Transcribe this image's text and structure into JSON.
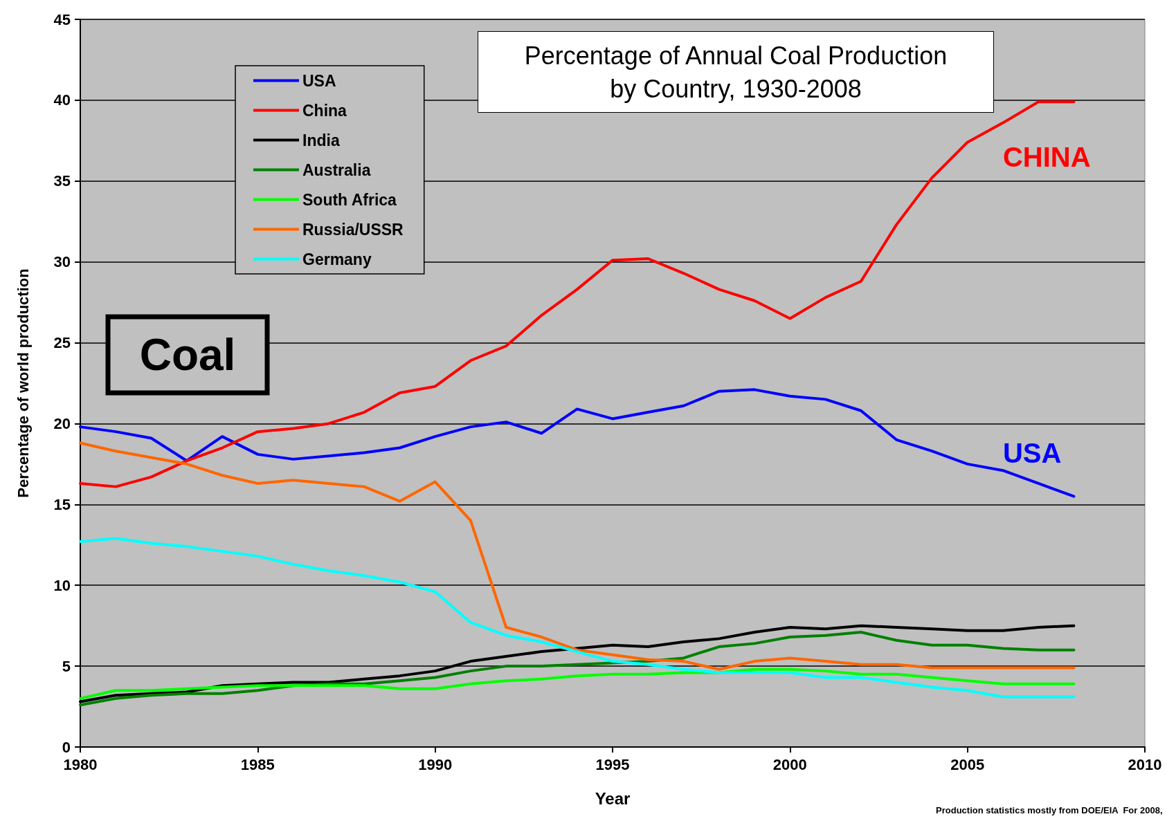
{
  "chart_data": {
    "type": "line",
    "title": "Percentage of Annual Coal Production\nby Country, 1930-2008",
    "xlabel": "Year",
    "ylabel": "Percentage of world production",
    "x": [
      1980,
      1981,
      1982,
      1983,
      1984,
      1985,
      1986,
      1987,
      1988,
      1989,
      1990,
      1991,
      1992,
      1993,
      1994,
      1995,
      1996,
      1997,
      1998,
      1999,
      2000,
      2001,
      2002,
      2003,
      2004,
      2005,
      2006,
      2007,
      2008
    ],
    "series": [
      {
        "name": "USA",
        "color": "#0000ff",
        "values": [
          19.8,
          19.5,
          19.1,
          17.7,
          19.2,
          18.1,
          17.8,
          18.0,
          18.2,
          18.5,
          19.2,
          19.8,
          20.1,
          19.4,
          20.9,
          20.3,
          20.7,
          21.1,
          22.0,
          22.1,
          21.7,
          21.5,
          20.8,
          19.0,
          18.3,
          17.5,
          17.1,
          16.3,
          15.5
        ]
      },
      {
        "name": "China",
        "color": "#ff0000",
        "values": [
          16.3,
          16.1,
          16.7,
          17.7,
          18.5,
          19.5,
          19.7,
          20.0,
          20.7,
          21.9,
          22.3,
          23.9,
          24.8,
          26.7,
          28.3,
          30.1,
          30.2,
          29.3,
          28.3,
          27.6,
          26.5,
          27.8,
          28.8,
          32.3,
          35.2,
          37.4,
          38.6,
          39.9,
          39.9
        ]
      },
      {
        "name": "India",
        "color": "#000000",
        "values": [
          2.8,
          3.2,
          3.3,
          3.4,
          3.8,
          3.9,
          4.0,
          4.0,
          4.2,
          4.4,
          4.7,
          5.3,
          5.6,
          5.9,
          6.1,
          6.3,
          6.2,
          6.5,
          6.7,
          7.1,
          7.4,
          7.3,
          7.5,
          7.4,
          7.3,
          7.2,
          7.2,
          7.4,
          7.5
        ]
      },
      {
        "name": "Australia",
        "color": "#008000",
        "values": [
          2.6,
          3.0,
          3.2,
          3.3,
          3.3,
          3.5,
          3.8,
          3.9,
          3.9,
          4.1,
          4.3,
          4.7,
          5.0,
          5.0,
          5.1,
          5.2,
          5.3,
          5.5,
          6.2,
          6.4,
          6.8,
          6.9,
          7.1,
          6.6,
          6.3,
          6.3,
          6.1,
          6.0,
          6.0
        ]
      },
      {
        "name": "South Africa",
        "color": "#00ff00",
        "values": [
          3.0,
          3.5,
          3.5,
          3.6,
          3.7,
          3.8,
          3.8,
          3.8,
          3.8,
          3.6,
          3.6,
          3.9,
          4.1,
          4.2,
          4.4,
          4.5,
          4.5,
          4.6,
          4.6,
          4.8,
          4.8,
          4.7,
          4.5,
          4.5,
          4.3,
          4.1,
          3.9,
          3.9,
          3.9
        ]
      },
      {
        "name": "Russia/USSR",
        "color": "#ff6600",
        "values": [
          18.8,
          18.3,
          17.9,
          17.5,
          16.8,
          16.3,
          16.5,
          16.3,
          16.1,
          15.2,
          16.4,
          14.0,
          7.4,
          6.8,
          6.0,
          5.7,
          5.4,
          5.3,
          4.8,
          5.3,
          5.5,
          5.3,
          5.1,
          5.1,
          4.9,
          4.9,
          4.9,
          4.9,
          4.9
        ]
      },
      {
        "name": "Germany",
        "color": "#00ffff",
        "values": [
          12.7,
          12.9,
          12.6,
          12.4,
          12.1,
          11.8,
          11.3,
          10.9,
          10.6,
          10.2,
          9.6,
          7.7,
          6.9,
          6.5,
          5.9,
          5.3,
          5.1,
          4.8,
          4.6,
          4.6,
          4.6,
          4.3,
          4.3,
          4.0,
          3.7,
          3.5,
          3.1,
          3.1,
          3.1
        ]
      }
    ],
    "xlim": [
      1980,
      2010
    ],
    "xticks": [
      1980,
      1985,
      1990,
      1995,
      2000,
      2005,
      2010
    ],
    "ylim": [
      0,
      45
    ],
    "yticks": [
      0,
      5,
      10,
      15,
      20,
      25,
      30,
      35,
      40,
      45
    ],
    "grid": "y",
    "legend": "top left",
    "marker": "none",
    "line_style": "solid",
    "annotations": [
      "Coal",
      "CHINA",
      "USA",
      "Production statistics mostly from DOE/EIA  For 2008,"
    ]
  }
}
